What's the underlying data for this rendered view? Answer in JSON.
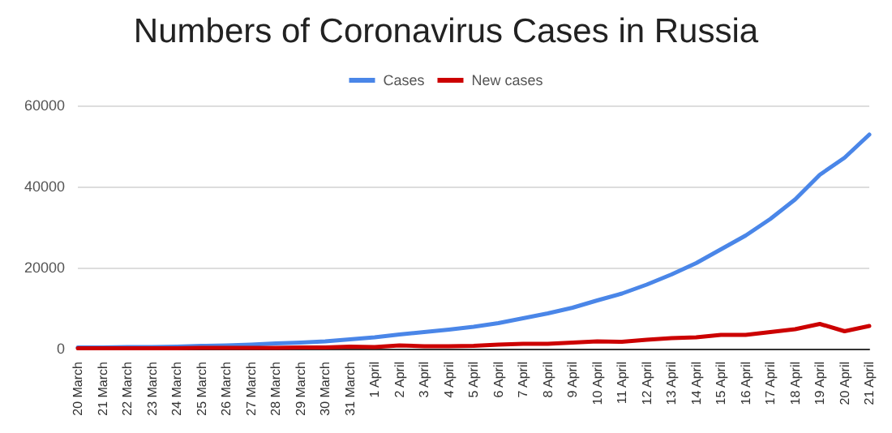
{
  "chart_data": {
    "type": "line",
    "title": "Numbers of Coronavirus Cases in Russia",
    "categories": [
      "20 March",
      "21 March",
      "22 March",
      "23 March",
      "24 March",
      "25 March",
      "26 March",
      "27 March",
      "28 March",
      "29 March",
      "30 March",
      "31 March",
      "1 April",
      "2 April",
      "3 April",
      "4 April",
      "5 April",
      "6 April",
      "7 April",
      "8 April",
      "9 April",
      "10 April",
      "11 April",
      "12 April",
      "13 April",
      "14 April",
      "15 April",
      "16 April",
      "17 April",
      "18 April",
      "19 April",
      "20 April",
      "21 April"
    ],
    "series": [
      {
        "name": "Cases",
        "color": "#4a86e8",
        "values": [
          300,
          300,
          400,
          400,
          500,
          700,
          800,
          1000,
          1300,
          1500,
          1800,
          2300,
          2800,
          3500,
          4100,
          4700,
          5400,
          6300,
          7500,
          8700,
          10100,
          11900,
          13600,
          15800,
          18300,
          21100,
          24500,
          27900,
          32000,
          36800,
          42900,
          47100,
          52800
        ]
      },
      {
        "name": "New cases",
        "color": "#cc0000",
        "values": [
          100,
          100,
          100,
          100,
          100,
          200,
          200,
          200,
          200,
          300,
          300,
          500,
          400,
          800,
          600,
          600,
          700,
          1000,
          1200,
          1200,
          1500,
          1800,
          1700,
          2200,
          2600,
          2800,
          3400,
          3400,
          4100,
          4800,
          6100,
          4300,
          5600
        ]
      }
    ],
    "ylim": [
      0,
      60000
    ],
    "yticks": [
      0,
      20000,
      40000,
      60000
    ],
    "grid": "y",
    "legend": "top",
    "marker": "none",
    "line_style": "solid"
  }
}
